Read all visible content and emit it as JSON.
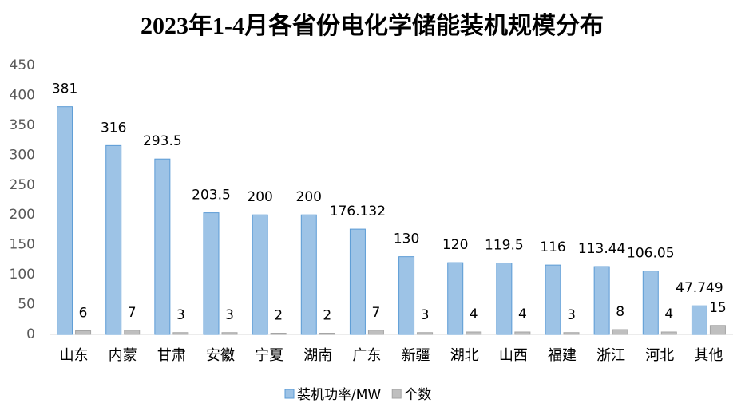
{
  "chart_data": {
    "type": "bar",
    "title": "2023年1-4月各省份电化学储能装机规模分布",
    "categories": [
      "山东",
      "内蒙",
      "甘肃",
      "安徽",
      "宁夏",
      "湖南",
      "广东",
      "新疆",
      "湖北",
      "山西",
      "福建",
      "浙江",
      "河北",
      "其他"
    ],
    "series": [
      {
        "name": "装机功率/MW",
        "color": "#9dc3e6",
        "values": [
          381,
          316,
          293.5,
          203.5,
          200,
          200,
          176.132,
          130,
          120,
          119.5,
          116,
          113.44,
          106.05,
          47.749
        ]
      },
      {
        "name": "个数",
        "color": "#bfbfbf",
        "values": [
          6,
          7,
          3,
          3,
          2,
          2,
          7,
          3,
          4,
          4,
          3,
          8,
          4,
          15
        ]
      }
    ],
    "ylim": [
      0,
      450
    ],
    "yticks": [
      0,
      50,
      100,
      150,
      200,
      250,
      300,
      350,
      400,
      450
    ],
    "grid": false,
    "legend": "bottom"
  }
}
